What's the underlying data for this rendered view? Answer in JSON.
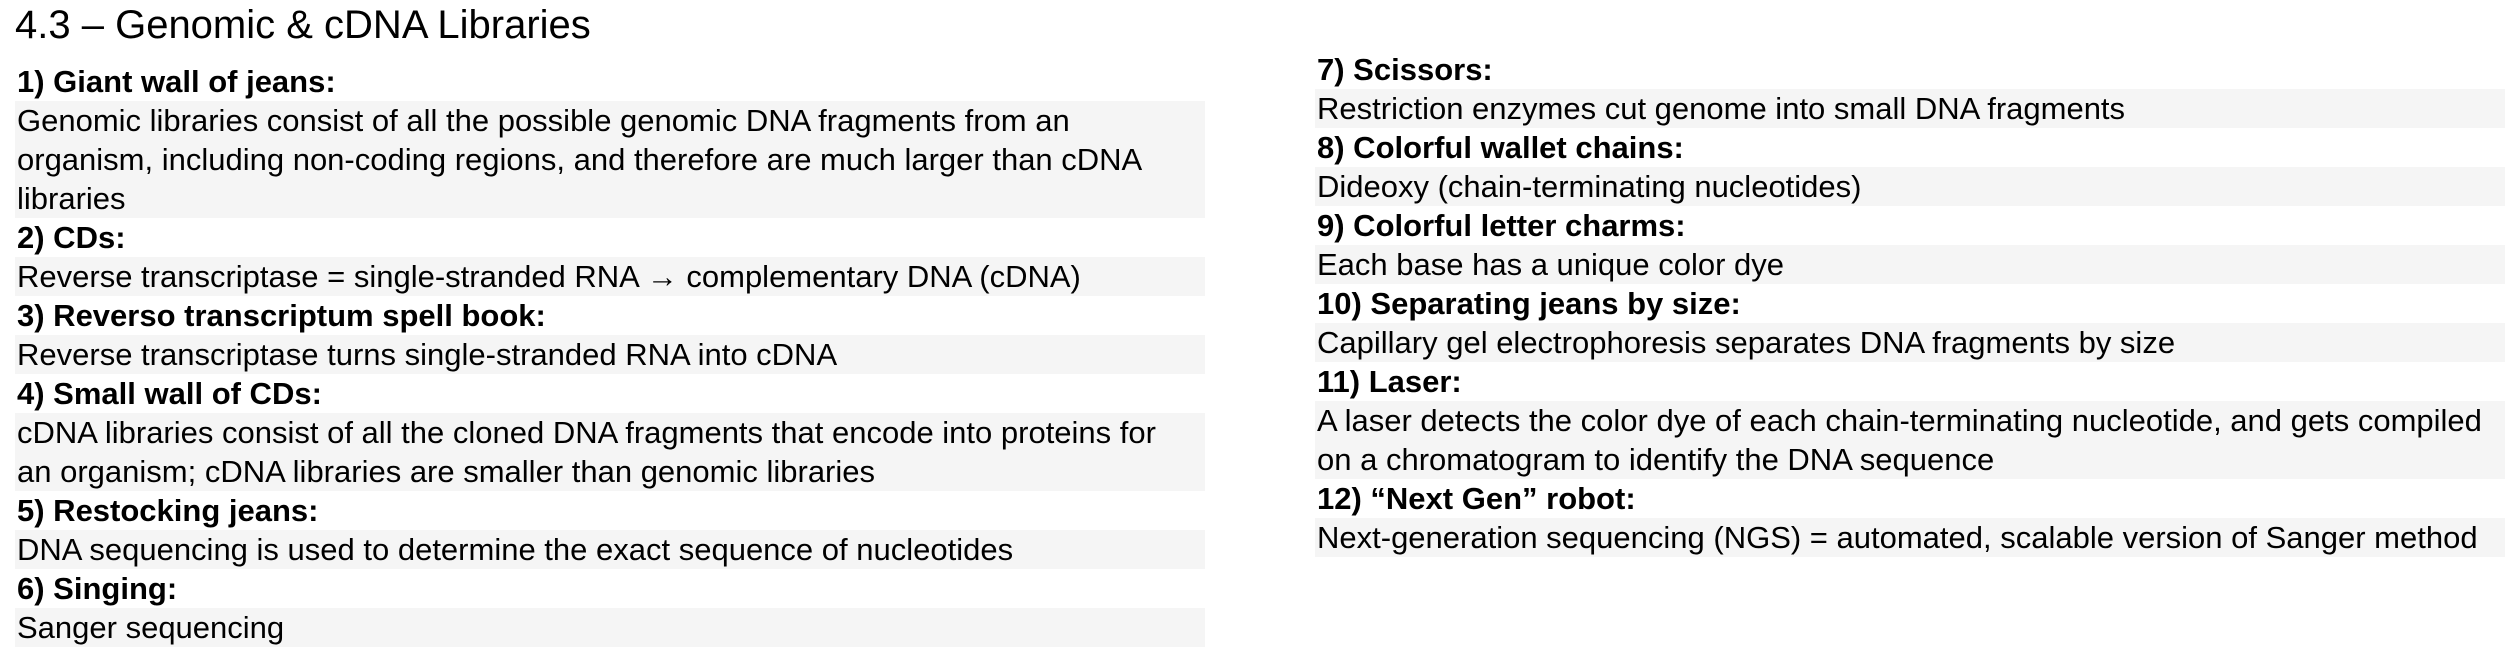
{
  "title": "4.3 – Genomic & cDNA Libraries",
  "left_items": [
    {
      "heading": "1) Giant wall of jeans:",
      "text": "Genomic libraries consist of all the possible genomic DNA fragments from an organism, including non-coding regions, and therefore are much larger than cDNA libraries"
    },
    {
      "heading": "2) CDs:",
      "text": "Reverse transcriptase = single-stranded RNA → complementary DNA (cDNA)"
    },
    {
      "heading": "3) Reverso transcriptum spell book:",
      "text": "Reverse transcriptase turns single-stranded RNA into cDNA"
    },
    {
      "heading": "4) Small wall of CDs:",
      "text": "cDNA libraries consist of all the cloned DNA fragments that encode into proteins for an organism; cDNA libraries are smaller than genomic libraries"
    },
    {
      "heading": "5) Restocking jeans:",
      "text": "DNA sequencing is used to determine the exact sequence of nucleotides"
    },
    {
      "heading": "6) Singing:",
      "text": "Sanger sequencing"
    }
  ],
  "right_items": [
    {
      "heading": "7) Scissors:",
      "text": "Restriction enzymes cut genome into small DNA fragments"
    },
    {
      "heading": "8) Colorful wallet chains:",
      "text": "Dideoxy (chain-terminating nucleotides)"
    },
    {
      "heading": "9) Colorful letter charms:",
      "text": "Each base has a unique color dye"
    },
    {
      "heading": "10) Separating jeans by size:",
      "text": "Capillary gel electrophoresis separates DNA fragments by size"
    },
    {
      "heading": "11) Laser:",
      "text": "A laser detects the color dye of each chain-terminating nucleotide, and gets compiled on a chromatogram to identify the DNA sequence"
    },
    {
      "heading": "12) “Next Gen” robot:",
      "text": "Next-generation sequencing (NGS) = automated, scalable version of Sanger method"
    }
  ]
}
